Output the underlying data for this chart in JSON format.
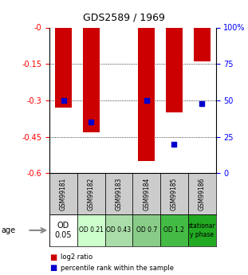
{
  "title": "GDS2589 / 1969",
  "samples": [
    "GSM99181",
    "GSM99182",
    "GSM99183",
    "GSM99184",
    "GSM99185",
    "GSM99186"
  ],
  "log2_ratio": [
    -0.33,
    -0.43,
    0.0,
    -0.55,
    -0.35,
    -0.14
  ],
  "percentile_rank": [
    50,
    35,
    0,
    50,
    20,
    48
  ],
  "ylim_left": [
    -0.6,
    0.0
  ],
  "ylim_right": [
    0,
    100
  ],
  "yticks_left": [
    0.0,
    -0.15,
    -0.3,
    -0.45,
    -0.6
  ],
  "ytick_labels_left": [
    "-0",
    "-0.15",
    "-0.3",
    "-0.45",
    "-0.6"
  ],
  "yticks_right": [
    100,
    75,
    50,
    25,
    0
  ],
  "ytick_labels_right": [
    "100%",
    "75",
    "50",
    "25",
    "0"
  ],
  "bar_color": "#cc0000",
  "dot_color": "#0000cc",
  "age_labels": [
    "OD\n0.05",
    "OD 0.21",
    "OD 0.43",
    "OD 0.7",
    "OD 1.2",
    "stationar\ny phase"
  ],
  "age_bg_colors": [
    "#ffffff",
    "#ccffcc",
    "#aaddaa",
    "#88cc88",
    "#44bb44",
    "#22aa22"
  ],
  "sample_bg_color": "#cccccc",
  "legend_red": "log2 ratio",
  "legend_blue": "percentile rank within the sample",
  "age_label_fontsize": [
    7,
    5.5,
    5.5,
    5.5,
    5.5,
    5.5
  ],
  "gridline_color": "#333333"
}
